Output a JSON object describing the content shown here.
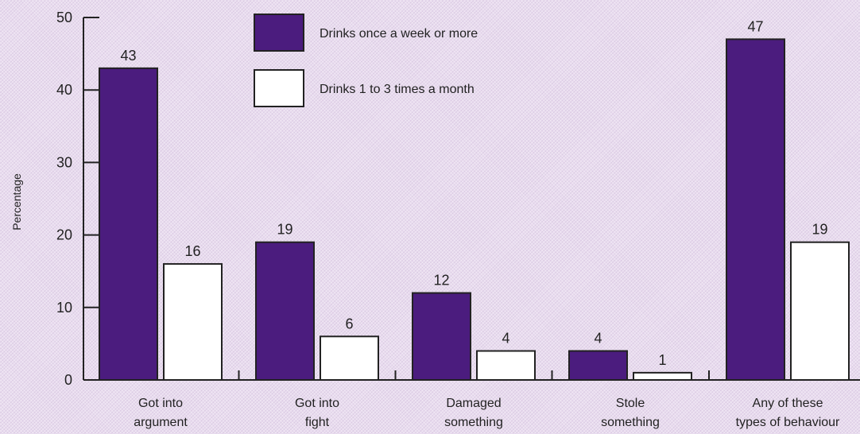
{
  "chart_data": {
    "type": "bar",
    "ylabel": "Percentage",
    "ylim": [
      0,
      50
    ],
    "yticks": [
      0,
      10,
      20,
      30,
      40,
      50
    ],
    "categories": [
      [
        "Got into",
        "argument"
      ],
      [
        "Got into",
        "fight"
      ],
      [
        "Damaged",
        "something"
      ],
      [
        "Stole",
        "something"
      ],
      [
        "Any of these",
        "types of behaviour"
      ]
    ],
    "series": [
      {
        "name": "Drinks once a week or more",
        "color": "#4b1c7e",
        "values": [
          43,
          19,
          12,
          4,
          47
        ]
      },
      {
        "name": "Drinks 1 to 3 times a month",
        "color": "#ffffff",
        "values": [
          16,
          6,
          4,
          1,
          19
        ]
      }
    ],
    "legend_position": "top-center",
    "grid": false
  }
}
